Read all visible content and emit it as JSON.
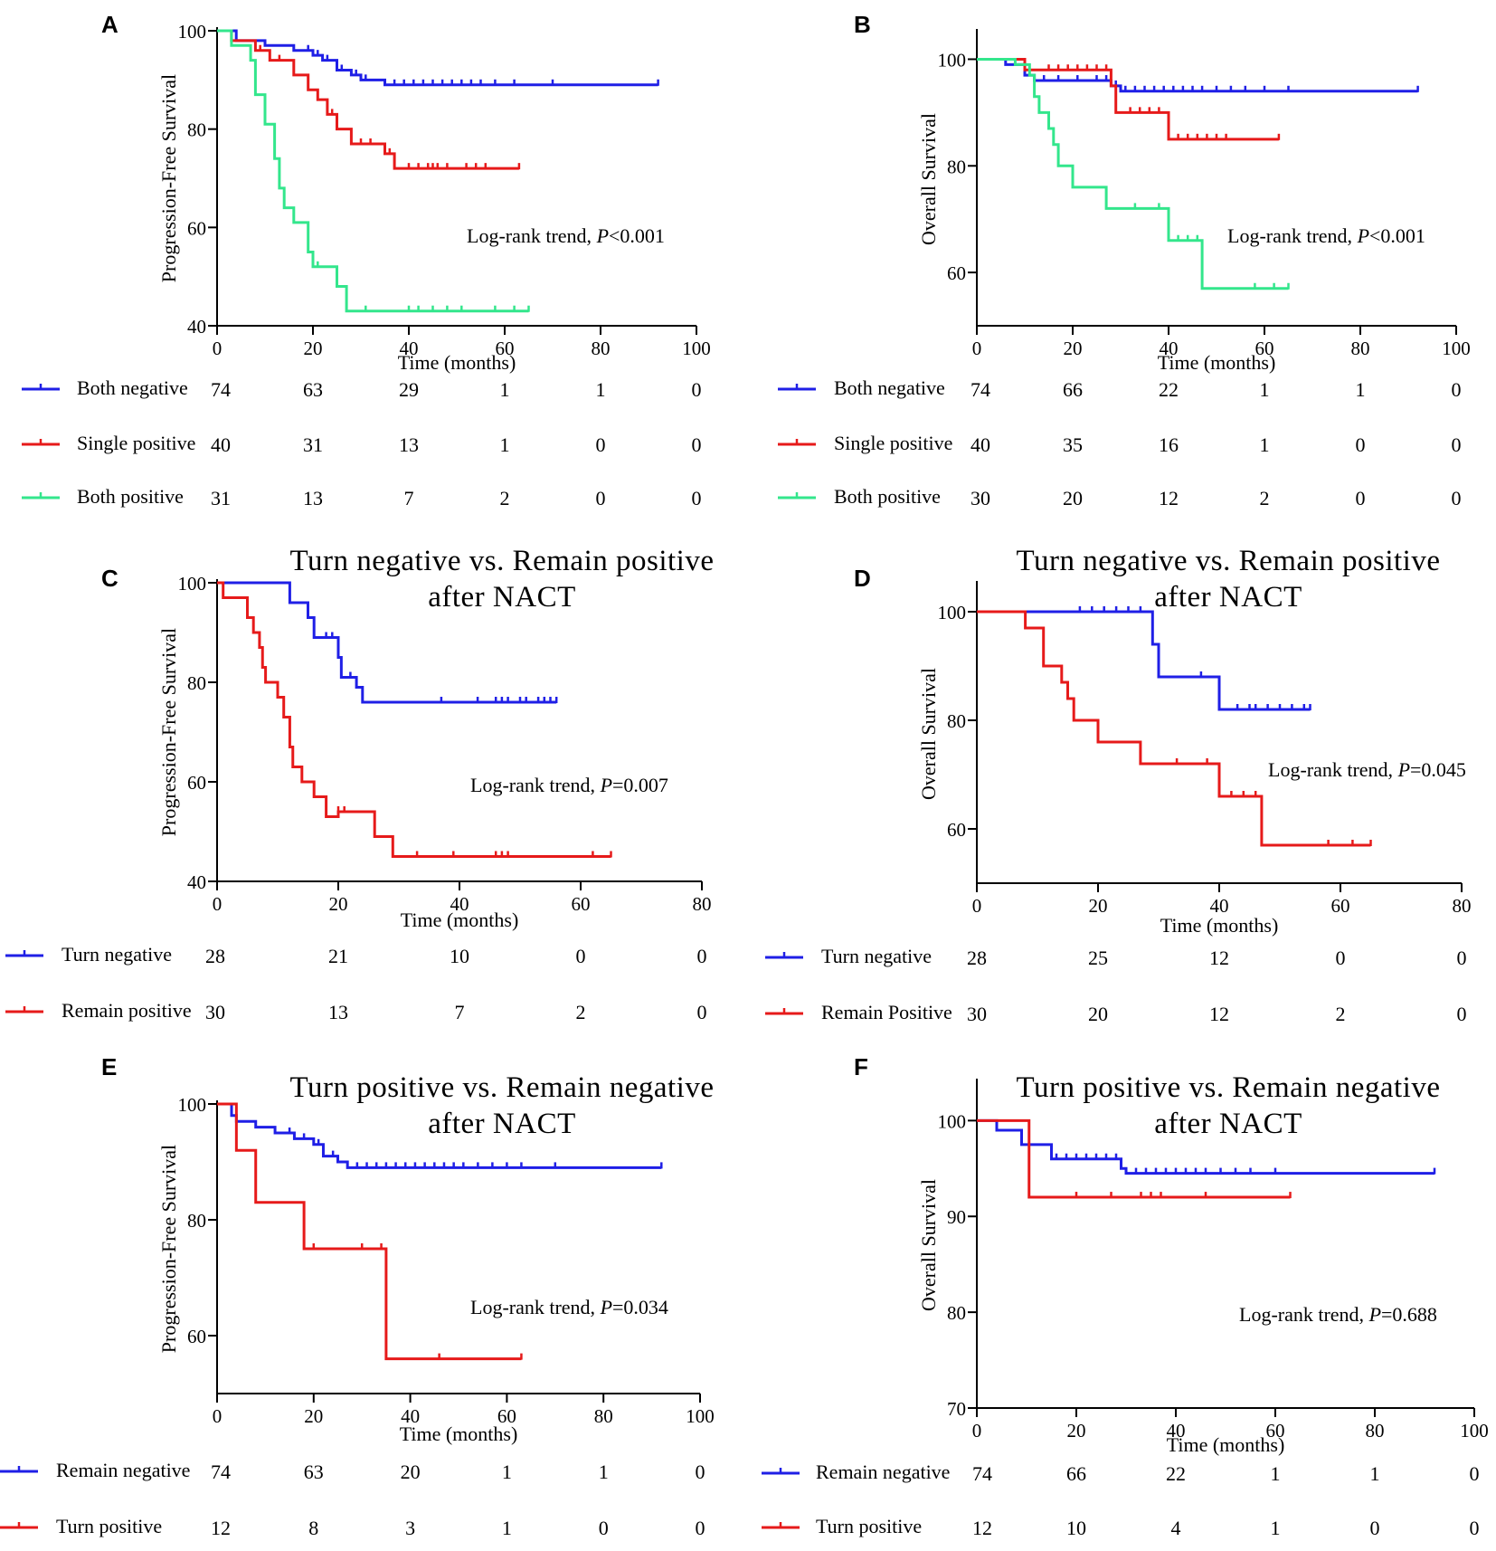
{
  "colors": {
    "blue": "#1f1fe6",
    "red": "#e61a1a",
    "green": "#33e68c",
    "axis": "#000000"
  },
  "chart_data": [
    {
      "panel": "A",
      "type": "line",
      "title_lines": [],
      "xlabel": "Time (months)",
      "ylabel": "Progression-Free Survival",
      "xlim": [
        0,
        100
      ],
      "ylim": [
        40,
        100
      ],
      "xticks": [
        0,
        20,
        40,
        60,
        80,
        100
      ],
      "yticks": [
        40,
        60,
        80,
        100
      ],
      "annotation_prefix": "Log-rank trend, ",
      "p_label": "P",
      "annotation_value": "<0.001",
      "series": [
        {
          "name": "Both negative",
          "color": "#1f1fe6",
          "steps": [
            [
              0,
              100
            ],
            [
              4,
              98
            ],
            [
              10,
              97
            ],
            [
              16,
              96
            ],
            [
              20,
              95
            ],
            [
              22,
              94
            ],
            [
              25,
              92
            ],
            [
              28,
              91
            ],
            [
              30,
              90
            ],
            [
              35,
              89
            ],
            [
              92,
              89
            ]
          ],
          "censors": [
            19,
            21,
            23,
            26,
            29,
            31,
            37,
            39,
            41,
            43,
            45,
            47,
            49,
            51,
            53,
            55,
            58,
            62,
            70,
            92
          ],
          "at_risk": [
            "74",
            "63",
            "29",
            "1",
            "1",
            "0"
          ]
        },
        {
          "name": "Single positive",
          "color": "#e61a1a",
          "steps": [
            [
              0,
              100
            ],
            [
              3,
              98
            ],
            [
              8,
              96
            ],
            [
              11,
              94
            ],
            [
              16,
              91
            ],
            [
              19,
              88
            ],
            [
              21,
              86
            ],
            [
              23,
              83
            ],
            [
              25,
              80
            ],
            [
              28,
              77
            ],
            [
              35,
              75
            ],
            [
              37,
              72
            ],
            [
              63,
              72
            ]
          ],
          "censors": [
            9,
            13,
            24,
            30,
            32,
            36,
            40,
            42,
            44,
            45,
            46,
            48,
            52,
            54,
            56,
            63
          ],
          "at_risk": [
            "40",
            "31",
            "13",
            "1",
            "0",
            "0"
          ]
        },
        {
          "name": "Both positive",
          "color": "#33e68c",
          "steps": [
            [
              0,
              100
            ],
            [
              3,
              97
            ],
            [
              7,
              94
            ],
            [
              8,
              87
            ],
            [
              10,
              81
            ],
            [
              12,
              74
            ],
            [
              13,
              68
            ],
            [
              14,
              64
            ],
            [
              16,
              61
            ],
            [
              19,
              55
            ],
            [
              20,
              52
            ],
            [
              25,
              48
            ],
            [
              27,
              43
            ],
            [
              65,
              43
            ]
          ],
          "censors": [
            21,
            31,
            40,
            42,
            45,
            48,
            51,
            58,
            62,
            65
          ],
          "at_risk": [
            "31",
            "13",
            "7",
            "2",
            "0",
            "0"
          ]
        }
      ]
    },
    {
      "panel": "B",
      "type": "line",
      "title_lines": [],
      "xlabel": "Time (months)",
      "ylabel": "Overall Survival",
      "xlim": [
        0,
        100
      ],
      "ylim": [
        50,
        105
      ],
      "xticks": [
        0,
        20,
        40,
        60,
        80,
        100
      ],
      "yticks": [
        60,
        80,
        100
      ],
      "annotation_prefix": "Log-rank trend, ",
      "p_label": "P",
      "annotation_value": "<0.001",
      "series": [
        {
          "name": "Both negative",
          "color": "#1f1fe6",
          "steps": [
            [
              0,
              100
            ],
            [
              6,
              99
            ],
            [
              10,
              97
            ],
            [
              12,
              96
            ],
            [
              28,
              95
            ],
            [
              30,
              94
            ],
            [
              92,
              94
            ]
          ],
          "censors": [
            14,
            17,
            21,
            25,
            27,
            29,
            31,
            33,
            35,
            37,
            39,
            41,
            43,
            45,
            47,
            50,
            53,
            56,
            60,
            65,
            92
          ],
          "at_risk": [
            "74",
            "66",
            "22",
            "1",
            "1",
            "0"
          ]
        },
        {
          "name": "Single positive",
          "color": "#e61a1a",
          "steps": [
            [
              0,
              100
            ],
            [
              10,
              98
            ],
            [
              28,
              95
            ],
            [
              29,
              90
            ],
            [
              40,
              85
            ],
            [
              63,
              85
            ]
          ],
          "censors": [
            15,
            17,
            19,
            21,
            23,
            25,
            27,
            32,
            34,
            36,
            38,
            42,
            44,
            46,
            48,
            50,
            52,
            63
          ],
          "at_risk": [
            "40",
            "35",
            "16",
            "1",
            "0",
            "0"
          ]
        },
        {
          "name": "Both positive",
          "color": "#33e68c",
          "steps": [
            [
              0,
              100
            ],
            [
              8,
              99
            ],
            [
              11,
              97
            ],
            [
              12,
              93
            ],
            [
              13,
              90
            ],
            [
              15,
              87
            ],
            [
              16,
              84
            ],
            [
              17,
              80
            ],
            [
              20,
              76
            ],
            [
              27,
              72
            ],
            [
              40,
              66
            ],
            [
              47,
              57
            ],
            [
              65,
              57
            ]
          ],
          "censors": [
            20,
            33,
            38,
            42,
            44,
            46,
            58,
            62,
            65
          ],
          "at_risk": [
            "30",
            "20",
            "12",
            "2",
            "0",
            "0"
          ]
        }
      ]
    },
    {
      "panel": "C",
      "type": "line",
      "title_lines": [
        "Turn negative vs. Remain positive",
        "after NACT"
      ],
      "xlabel": "Time (months)",
      "ylabel": "Progression-Free Survival",
      "xlim": [
        0,
        80
      ],
      "ylim": [
        40,
        100
      ],
      "xticks": [
        0,
        20,
        40,
        60,
        80
      ],
      "yticks": [
        40,
        60,
        80,
        100
      ],
      "annotation_prefix": "Log-rank trend, ",
      "p_label": "P",
      "annotation_value": "=0.007",
      "series": [
        {
          "name": "Turn negative",
          "color": "#1f1fe6",
          "steps": [
            [
              0,
              100
            ],
            [
              12,
              96
            ],
            [
              15,
              93
            ],
            [
              16,
              89
            ],
            [
              20,
              85
            ],
            [
              20.5,
              81
            ],
            [
              23,
              79
            ],
            [
              24,
              76
            ],
            [
              56,
              76
            ]
          ],
          "censors": [
            18,
            19,
            22,
            37,
            43,
            46,
            47,
            48,
            50,
            51,
            53,
            54,
            55,
            56
          ],
          "at_risk": [
            "28",
            "21",
            "10",
            "0",
            "0"
          ]
        },
        {
          "name": "Remain positive",
          "color": "#e61a1a",
          "steps": [
            [
              0,
              100
            ],
            [
              1,
              97
            ],
            [
              5,
              93
            ],
            [
              6,
              90
            ],
            [
              7,
              87
            ],
            [
              7.5,
              83
            ],
            [
              8,
              80
            ],
            [
              10,
              77
            ],
            [
              11,
              73
            ],
            [
              12,
              67
            ],
            [
              12.5,
              63
            ],
            [
              14,
              60
            ],
            [
              16,
              57
            ],
            [
              18,
              53
            ],
            [
              20,
              54
            ],
            [
              26,
              49
            ],
            [
              29,
              45
            ],
            [
              65,
              45
            ]
          ],
          "censors": [
            20,
            21,
            33,
            39,
            46,
            47,
            48,
            62,
            65
          ],
          "at_risk": [
            "30",
            "13",
            "7",
            "2",
            "0"
          ]
        }
      ]
    },
    {
      "panel": "D",
      "type": "line",
      "title_lines": [
        "Turn negative vs. Remain positive",
        "after NACT"
      ],
      "xlabel": "Time (months)",
      "ylabel": "Overall Survival",
      "xlim": [
        0,
        80
      ],
      "ylim": [
        50,
        105
      ],
      "xticks": [
        0,
        20,
        40,
        60,
        80
      ],
      "yticks": [
        60,
        80,
        100
      ],
      "annotation_prefix": "Log-rank trend, ",
      "p_label": "P",
      "annotation_value": "=0.045",
      "series": [
        {
          "name": "Turn negative",
          "color": "#1f1fe6",
          "steps": [
            [
              0,
              100
            ],
            [
              28,
              100
            ],
            [
              29,
              94
            ],
            [
              30,
              88
            ],
            [
              40,
              82
            ],
            [
              55,
              82
            ]
          ],
          "censors": [
            17,
            19,
            21,
            23,
            25,
            27,
            37,
            43,
            45,
            46,
            48,
            50,
            52,
            54,
            55
          ],
          "at_risk": [
            "28",
            "25",
            "12",
            "0",
            "0"
          ]
        },
        {
          "name": "Remain Positive",
          "color": "#e61a1a",
          "steps": [
            [
              0,
              100
            ],
            [
              8,
              97
            ],
            [
              11,
              90
            ],
            [
              14,
              87
            ],
            [
              15,
              84
            ],
            [
              16,
              80
            ],
            [
              20,
              76
            ],
            [
              27,
              72
            ],
            [
              40,
              66
            ],
            [
              47,
              57
            ],
            [
              65,
              57
            ]
          ],
          "censors": [
            20,
            33,
            38,
            42,
            44,
            46,
            58,
            62,
            65
          ],
          "at_risk": [
            "30",
            "20",
            "12",
            "2",
            "0"
          ]
        }
      ]
    },
    {
      "panel": "E",
      "type": "line",
      "title_lines": [
        "Turn positive vs. Remain negative",
        "after NACT"
      ],
      "xlabel": "Time (months)",
      "ylabel": "Progression-Free Survival",
      "xlim": [
        0,
        100
      ],
      "ylim": [
        50,
        100
      ],
      "xticks": [
        0,
        20,
        40,
        60,
        80,
        100
      ],
      "yticks": [
        60,
        80,
        100
      ],
      "annotation_prefix": "Log-rank trend, ",
      "p_label": "P",
      "annotation_value": "=0.034",
      "series": [
        {
          "name": "Remain negative",
          "color": "#1f1fe6",
          "steps": [
            [
              0,
              100
            ],
            [
              3,
              98
            ],
            [
              4,
              97
            ],
            [
              8,
              96
            ],
            [
              12,
              95
            ],
            [
              16,
              94
            ],
            [
              20,
              93
            ],
            [
              22,
              91
            ],
            [
              25,
              90
            ],
            [
              27,
              89
            ],
            [
              92,
              89
            ]
          ],
          "censors": [
            15,
            18,
            21,
            24,
            29,
            31,
            33,
            35,
            37,
            39,
            41,
            43,
            45,
            47,
            49,
            51,
            54,
            57,
            60,
            63,
            70,
            92
          ],
          "at_risk": [
            "74",
            "63",
            "20",
            "1",
            "1",
            "0"
          ]
        },
        {
          "name": "Turn positive",
          "color": "#e61a1a",
          "steps": [
            [
              0,
              100
            ],
            [
              4,
              92
            ],
            [
              8,
              83
            ],
            [
              18,
              75
            ],
            [
              35,
              56
            ],
            [
              63,
              56
            ]
          ],
          "censors": [
            20,
            30,
            34,
            46,
            63
          ],
          "at_risk": [
            "12",
            "8",
            "3",
            "1",
            "0",
            "0"
          ]
        }
      ]
    },
    {
      "panel": "F",
      "type": "line",
      "title_lines": [
        "Turn positive vs. Remain negative",
        "after NACT"
      ],
      "xlabel": "Time (months)",
      "ylabel": "Overall Survival",
      "xlim": [
        0,
        100
      ],
      "ylim": [
        70,
        104
      ],
      "xticks": [
        0,
        20,
        40,
        60,
        80,
        100
      ],
      "yticks": [
        70,
        80,
        90,
        100
      ],
      "annotation_prefix": "Log-rank trend, ",
      "p_label": "P",
      "annotation_value": "=0.688",
      "series": [
        {
          "name": "Remain negative",
          "color": "#1f1fe6",
          "steps": [
            [
              0,
              100
            ],
            [
              4,
              99
            ],
            [
              9,
              97.5
            ],
            [
              15,
              96
            ],
            [
              29,
              95
            ],
            [
              30,
              94.5
            ],
            [
              92,
              94.5
            ]
          ],
          "censors": [
            16,
            18,
            20,
            22,
            24,
            26,
            28,
            30,
            32,
            34,
            36,
            38,
            40,
            42,
            44,
            46,
            49,
            52,
            55,
            60,
            92
          ],
          "at_risk": [
            "74",
            "66",
            "22",
            "1",
            "1",
            "0"
          ]
        },
        {
          "name": "Turn positive",
          "color": "#e61a1a",
          "steps": [
            [
              0,
              100
            ],
            [
              10,
              100
            ],
            [
              10.5,
              92
            ],
            [
              63,
              92
            ]
          ],
          "censors": [
            20,
            27,
            33,
            35,
            37,
            46,
            63
          ],
          "at_risk": [
            "12",
            "10",
            "4",
            "1",
            "0",
            "0"
          ]
        }
      ]
    }
  ]
}
